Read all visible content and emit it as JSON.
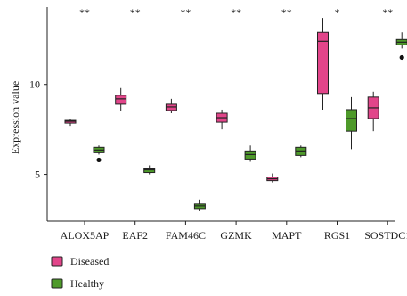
{
  "chart_data": {
    "type": "box",
    "ylabel": "Expression value",
    "ylim": [
      2.4,
      14.3
    ],
    "y_ticks": [
      5,
      10
    ],
    "categories": [
      "ALOX5AP",
      "EAF2",
      "FAM46C",
      "GZMK",
      "MAPT",
      "RGS1",
      "SOSTDC1"
    ],
    "significance": [
      "**",
      "**",
      "**",
      "**",
      "**",
      "*",
      "**"
    ],
    "series": [
      {
        "name": "Diseased",
        "color": "#e2458a",
        "boxes": [
          {
            "whisker_low": 7.7,
            "q1": 7.85,
            "median": 7.95,
            "q3": 8.0,
            "whisker_high": 8.1,
            "outliers": []
          },
          {
            "whisker_low": 8.5,
            "q1": 8.9,
            "median": 9.2,
            "q3": 9.4,
            "whisker_high": 9.8,
            "outliers": []
          },
          {
            "whisker_low": 8.4,
            "q1": 8.55,
            "median": 8.75,
            "q3": 8.9,
            "whisker_high": 9.2,
            "outliers": []
          },
          {
            "whisker_low": 7.5,
            "q1": 7.9,
            "median": 8.15,
            "q3": 8.4,
            "whisker_high": 8.6,
            "outliers": []
          },
          {
            "whisker_low": 4.55,
            "q1": 4.65,
            "median": 4.75,
            "q3": 4.85,
            "whisker_high": 5.05,
            "outliers": []
          },
          {
            "whisker_low": 8.6,
            "q1": 9.5,
            "median": 12.4,
            "q3": 12.9,
            "whisker_high": 13.7,
            "outliers": []
          },
          {
            "whisker_low": 7.4,
            "q1": 8.1,
            "median": 8.7,
            "q3": 9.3,
            "whisker_high": 9.6,
            "outliers": []
          }
        ]
      },
      {
        "name": "Healthy",
        "color": "#4e9a2a",
        "boxes": [
          {
            "whisker_low": 6.1,
            "q1": 6.2,
            "median": 6.35,
            "q3": 6.5,
            "whisker_high": 6.6,
            "outliers": [
              5.8
            ]
          },
          {
            "whisker_low": 5.0,
            "q1": 5.1,
            "median": 5.25,
            "q3": 5.35,
            "whisker_high": 5.5,
            "outliers": []
          },
          {
            "whisker_low": 2.95,
            "q1": 3.1,
            "median": 3.25,
            "q3": 3.35,
            "whisker_high": 3.6,
            "outliers": []
          },
          {
            "whisker_low": 5.7,
            "q1": 5.85,
            "median": 6.1,
            "q3": 6.3,
            "whisker_high": 6.6,
            "outliers": []
          },
          {
            "whisker_low": 5.95,
            "q1": 6.05,
            "median": 6.3,
            "q3": 6.5,
            "whisker_high": 6.6,
            "outliers": []
          },
          {
            "whisker_low": 6.4,
            "q1": 7.4,
            "median": 8.1,
            "q3": 8.6,
            "whisker_high": 9.3,
            "outliers": []
          },
          {
            "whisker_low": 12.0,
            "q1": 12.2,
            "median": 12.35,
            "q3": 12.5,
            "whisker_high": 12.9,
            "outliers": [
              11.5
            ]
          }
        ]
      }
    ],
    "legend": {
      "position": "bottom-left",
      "entries": [
        "Diseased",
        "Healthy"
      ]
    },
    "grid": false
  }
}
